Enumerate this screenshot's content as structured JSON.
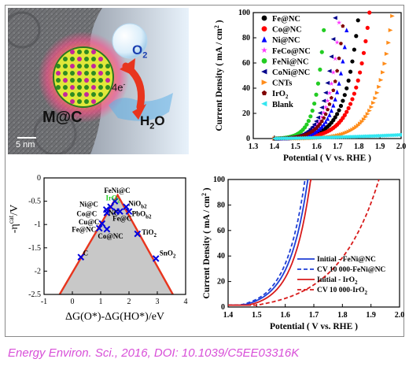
{
  "illustration": {
    "o2_label": "O",
    "o2_sub": "2",
    "electron_label": "4e",
    "electron_sup": "-",
    "h2o_label": "H",
    "h2o_sub": "2",
    "h2o_tail": "O",
    "catalyst_label": "M@C",
    "scalebar_label": "5 nm",
    "colors": {
      "o2": "#1a3fb0",
      "h2o": "#111111",
      "catalyst": "#111111",
      "arrow": "#e8351e"
    }
  },
  "citation": "Energy Environ. Sci., 2016, DOI: 10.1039/C5EE03316K",
  "chart_data": [
    {
      "type": "scatter",
      "id": "polarization",
      "xlabel": "Potential ( V vs. RHE )",
      "ylabel": "Current Density ( mA / cm",
      "ylabel_sup": "2",
      "ylabel_tail": " )",
      "xlim": [
        1.3,
        2.0
      ],
      "ylim": [
        0,
        100
      ],
      "xticks": [
        1.3,
        1.4,
        1.5,
        1.6,
        1.7,
        1.8,
        1.9,
        2.0
      ],
      "yticks": [
        0,
        20,
        40,
        60,
        80,
        100
      ],
      "legend_position": "top-left",
      "series": [
        {
          "name": "Fe@NC",
          "color": "#000000",
          "marker": "circle",
          "onset": 1.42,
          "end": 1.8,
          "k": 6.0
        },
        {
          "name": "Co@NC",
          "color": "#ff0000",
          "marker": "circle",
          "onset": 1.43,
          "end": 1.85,
          "k": 6.0
        },
        {
          "name": "Ni@NC",
          "color": "#0000ff",
          "marker": "triangle-up",
          "onset": 1.43,
          "end": 1.75,
          "k": 6.0
        },
        {
          "name": "FeCo@NC",
          "color": "#ff33ff",
          "marker": "star",
          "onset": 1.42,
          "end": 1.71,
          "k": 6.0
        },
        {
          "name": "FeNi@NC",
          "color": "#22cc22",
          "marker": "circle",
          "onset": 1.4,
          "end": 1.64,
          "k": 6.0
        },
        {
          "name": "CoNi@NC",
          "color": "#00008b",
          "marker": "triangle-left",
          "onset": 1.41,
          "end": 1.69,
          "k": 6.0
        },
        {
          "name": "CNTs",
          "color": "#ff8c1a",
          "marker": "triangle-right",
          "onset": 1.52,
          "end": 1.96,
          "k": 6.0
        },
        {
          "name": "IrO",
          "name_sub": "2",
          "color": "#800000",
          "marker": "pentagon",
          "onset": 1.41,
          "end": 1.73,
          "k": 6.0
        },
        {
          "name": "Blank",
          "color": "#33e6f0",
          "marker": "triangle-left",
          "onset": 1.4,
          "end": 2.0,
          "k": 1.0,
          "ymax": 3
        }
      ]
    },
    {
      "type": "scatter",
      "id": "volcano",
      "xlabel": "ΔG(O*)-ΔG(HO*)/eV",
      "ylabel": "-η",
      "ylabel_sup": "cat",
      "ylabel_tail": "/V",
      "xlim": [
        -1,
        4
      ],
      "ylim": [
        -2.5,
        0
      ],
      "xticks": [
        -1,
        0,
        1,
        2,
        3,
        4
      ],
      "yticks": [
        0,
        -0.5,
        -1,
        -1.5,
        -2,
        -2.5
      ],
      "volcano_apex": [
        1.6,
        -0.37
      ],
      "volcano_base": [
        [
          -0.45,
          -2.5
        ],
        [
          3.55,
          -2.5
        ]
      ],
      "fill_color": "#c8c8c8",
      "line_color": "#e8351e",
      "marker_color": "#0000dd",
      "points": [
        {
          "x": 1.5,
          "y": -0.5,
          "label": "FeNi@C",
          "lx": 1.12,
          "ly": -0.32,
          "color": "#000000"
        },
        {
          "x": 1.35,
          "y": -0.62,
          "label": "IrO",
          "label_sub": "2",
          "lx": 1.18,
          "ly": -0.48,
          "color": "#22cc22"
        },
        {
          "x": 1.9,
          "y": -0.62,
          "label": "NiO",
          "label_sub": "b2",
          "lx": 1.98,
          "ly": -0.6,
          "color": "#000000"
        },
        {
          "x": 1.2,
          "y": -0.68,
          "label": "Ni@C",
          "lx": 0.25,
          "ly": -0.62,
          "color": "#000000"
        },
        {
          "x": 1.22,
          "y": -0.75,
          "label": "Co@C",
          "lx": 0.15,
          "ly": -0.82,
          "color": "#000000"
        },
        {
          "x": 1.55,
          "y": -0.72,
          "label": "NC",
          "lx": 1.28,
          "ly": -0.8,
          "color": "#000000"
        },
        {
          "x": 1.68,
          "y": -0.72,
          "label": "Fe@C",
          "lx": 1.42,
          "ly": -0.92,
          "color": "#000000"
        },
        {
          "x": 2.0,
          "y": -0.72,
          "label": "PbO",
          "label_sub": "b2",
          "lx": 2.1,
          "ly": -0.82,
          "color": "#000000"
        },
        {
          "x": 1.05,
          "y": -0.98,
          "label": "Cu@C",
          "lx": 0.22,
          "ly": -1.0,
          "color": "#000000"
        },
        {
          "x": 0.95,
          "y": -1.08,
          "label": "Fe@NC",
          "lx": -0.02,
          "ly": -1.16,
          "color": "#000000"
        },
        {
          "x": 1.22,
          "y": -1.1,
          "label": "Co@NC",
          "lx": 0.9,
          "ly": -1.3,
          "color": "#000000"
        },
        {
          "x": 2.3,
          "y": -1.2,
          "label": "TiO",
          "label_sub": "2",
          "lx": 2.45,
          "ly": -1.22,
          "color": "#000000"
        },
        {
          "x": 0.3,
          "y": -1.7,
          "label": "C",
          "lx": 0.38,
          "ly": -1.66,
          "color": "#000000"
        },
        {
          "x": 2.95,
          "y": -1.73,
          "label": "SnO",
          "label_sub": "2",
          "lx": 3.08,
          "ly": -1.66,
          "color": "#000000"
        }
      ]
    },
    {
      "type": "line",
      "id": "stability",
      "xlabel": "Potential ( V vs. RHE )",
      "ylabel": "Current Density ( mA / cm",
      "ylabel_sup": "2",
      "ylabel_tail": " )",
      "xlim": [
        1.4,
        2.0
      ],
      "ylim": [
        0,
        100
      ],
      "xticks": [
        1.4,
        1.5,
        1.6,
        1.7,
        1.8,
        1.9,
        2.0
      ],
      "yticks": [
        0,
        20,
        40,
        60,
        80,
        100
      ],
      "legend_position": "bottom-right",
      "series": [
        {
          "name": "Initial - FeNi@NC",
          "color": "#1f3fd6",
          "dash": "solid",
          "onset": 1.45,
          "end": 1.68,
          "k": 3.5
        },
        {
          "name": "CV 10 000-FeNi@NC",
          "color": "#1f3fd6",
          "dash": "dashed",
          "onset": 1.44,
          "end": 1.67,
          "k": 3.5
        },
        {
          "name": "Initial - IrO",
          "name_sub": "2",
          "color": "#d81b1b",
          "dash": "solid",
          "onset": 1.47,
          "end": 1.69,
          "k": 3.5
        },
        {
          "name": "CV 10 000-IrO",
          "name_sub": "2",
          "color": "#d81b1b",
          "dash": "dashed",
          "onset": 1.5,
          "end": 1.93,
          "k": 3.0
        }
      ]
    }
  ]
}
